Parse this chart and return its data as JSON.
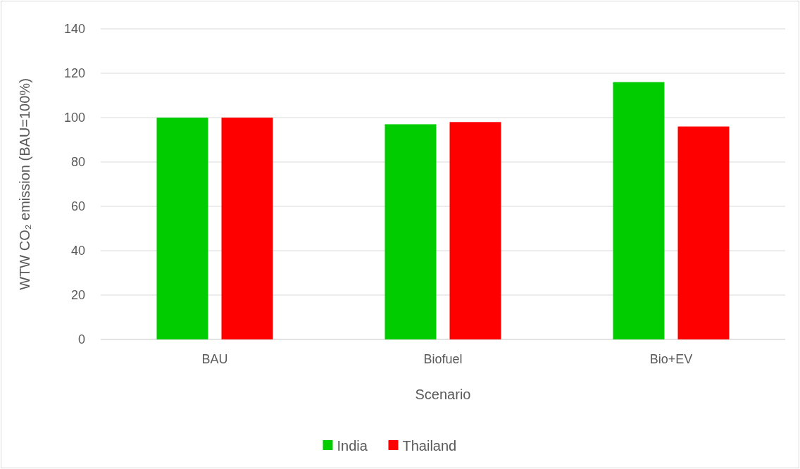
{
  "chart_data": {
    "type": "bar",
    "xlabel": "Scenario",
    "ylabel": "WTW CO₂ emission  (BAU=100%)",
    "categories": [
      "BAU",
      "Biofuel",
      "Bio+EV"
    ],
    "series": [
      {
        "name": "India",
        "color": "#00cc00",
        "values": [
          100,
          97,
          116
        ]
      },
      {
        "name": "Thailand",
        "color": "#ff0000",
        "values": [
          100,
          98,
          96
        ]
      }
    ],
    "ylim": [
      0,
      140
    ],
    "yticks": [
      0,
      20,
      40,
      60,
      80,
      100,
      120,
      140
    ],
    "grid": "y",
    "legend": "bottom"
  }
}
